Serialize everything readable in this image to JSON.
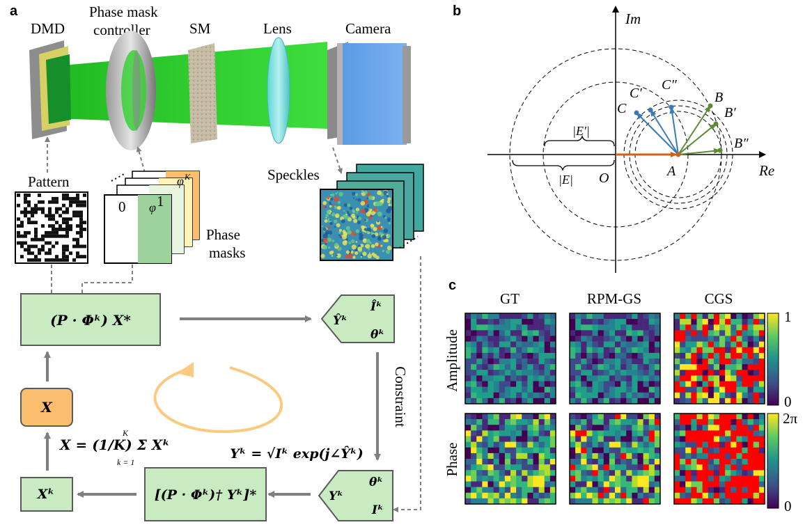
{
  "panels": {
    "a": "a",
    "b": "b",
    "c": "c"
  },
  "optics": {
    "dmd": "DMD",
    "phase_mask_controller_line1": "Phase mask",
    "phase_mask_controller_line2": "controller",
    "sm": "SM",
    "lens": "Lens",
    "camera": "Camera"
  },
  "inputs": {
    "pattern": "Pattern",
    "phase_masks_line1": "Phase",
    "phase_masks_line2": "masks",
    "mask_zero": "0",
    "mask_phi1": "φ",
    "mask_phi1_sup": "1",
    "mask_phik": "φ",
    "mask_phik_sup": "K",
    "speckles": "Speckles"
  },
  "loop": {
    "forward_formula": "(P · Φᵏ)  X*",
    "estimate_Y": "Ŷᵏ",
    "estimate_I": "Îᵏ",
    "estimate_theta": "θᵏ",
    "constraint": "Constraint",
    "constraint_formula": "Yᵏ = √Iᵏ exp(j∠Ŷᵏ)",
    "measured_Y": "Yᵏ",
    "measured_theta": "θᵏ",
    "measured_I": "Iᵏ",
    "backward_formula": "[(P · Φᵏ)† Yᵏ]*",
    "xk": "Xᵏ",
    "average_formula": "X = (1/K) Σ Xᵏ",
    "average_sum_top": "K",
    "average_sum_bottom": "k = 1",
    "x": "X"
  },
  "phasor": {
    "axis_im": "Im",
    "axis_re": "Re",
    "origin": "O",
    "A": "A",
    "B": "B",
    "B1": "B′",
    "B2": "B″",
    "C": "C",
    "C1": "C′",
    "C2": "C″",
    "E_prime": "|E′|",
    "E": "|E|"
  },
  "comparison": {
    "columns": [
      "GT",
      "RPM-GS",
      "CGS"
    ],
    "rows": [
      "Amplitude",
      "Phase"
    ],
    "amplitude_colorbar": {
      "max": "1",
      "min": "0"
    },
    "phase_colorbar": {
      "max": "2π",
      "min": "0"
    },
    "colormap": "viridis",
    "out_of_range_color": "#ff0000"
  },
  "colors": {
    "box_fill": "#c9ebc2",
    "x_fill": "#fbbd6e",
    "arrow_gray": "#7f7f7f",
    "loop_orange": "#fcc97f",
    "phasor_orange": "#d15f15",
    "phasor_green": "#5d8b33",
    "phasor_blue": "#3a79b8",
    "beam_green": "#2ed12e"
  }
}
